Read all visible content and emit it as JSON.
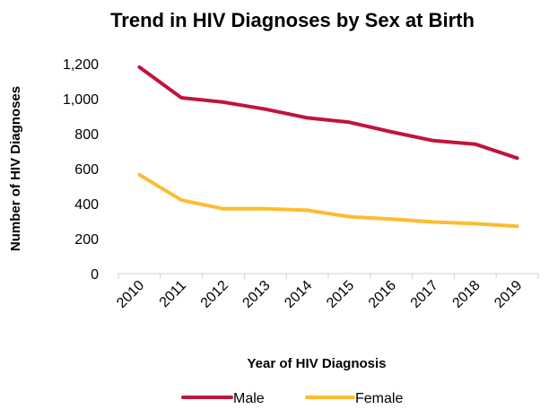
{
  "chart_data": {
    "type": "line",
    "title": "Trend in HIV Diagnoses by Sex at Birth",
    "xlabel": "Year of HIV Diagnosis",
    "ylabel": "Number of HIV Diagnoses",
    "categories": [
      "2010",
      "2011",
      "2012",
      "2013",
      "2014",
      "2015",
      "2016",
      "2017",
      "2018",
      "2019"
    ],
    "ylim": [
      0,
      1200
    ],
    "yticks": [
      0,
      200,
      400,
      600,
      800,
      1000,
      1200
    ],
    "ytick_labels": [
      "0",
      "200",
      "400",
      "600",
      "800",
      "1,000",
      "1,200"
    ],
    "grid": "none",
    "legend_position": "bottom",
    "series": [
      {
        "name": "Male",
        "color": "#C0143C",
        "values": [
          1180,
          1005,
          980,
          940,
          890,
          865,
          810,
          760,
          740,
          660
        ]
      },
      {
        "name": "Female",
        "color": "#FDBB30",
        "values": [
          565,
          420,
          370,
          370,
          362,
          325,
          312,
          295,
          285,
          270
        ]
      }
    ]
  }
}
